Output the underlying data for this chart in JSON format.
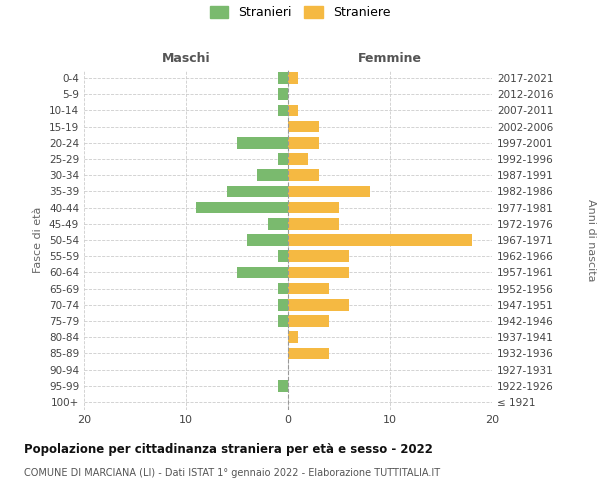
{
  "age_groups": [
    "100+",
    "95-99",
    "90-94",
    "85-89",
    "80-84",
    "75-79",
    "70-74",
    "65-69",
    "60-64",
    "55-59",
    "50-54",
    "45-49",
    "40-44",
    "35-39",
    "30-34",
    "25-29",
    "20-24",
    "15-19",
    "10-14",
    "5-9",
    "0-4"
  ],
  "birth_years": [
    "≤ 1921",
    "1922-1926",
    "1927-1931",
    "1932-1936",
    "1937-1941",
    "1942-1946",
    "1947-1951",
    "1952-1956",
    "1957-1961",
    "1962-1966",
    "1967-1971",
    "1972-1976",
    "1977-1981",
    "1982-1986",
    "1987-1991",
    "1992-1996",
    "1997-2001",
    "2002-2006",
    "2007-2011",
    "2012-2016",
    "2017-2021"
  ],
  "maschi": [
    0,
    1,
    0,
    0,
    0,
    1,
    1,
    1,
    5,
    1,
    4,
    2,
    9,
    6,
    3,
    1,
    5,
    0,
    1,
    1,
    1
  ],
  "femmine": [
    0,
    0,
    0,
    4,
    1,
    4,
    6,
    4,
    6,
    6,
    18,
    5,
    5,
    8,
    3,
    2,
    3,
    3,
    1,
    0,
    1
  ],
  "color_maschi": "#7aba6e",
  "color_femmine": "#f5b942",
  "background_color": "#ffffff",
  "grid_color": "#cccccc",
  "title": "Popolazione per cittadinanza straniera per età e sesso - 2022",
  "subtitle": "COMUNE DI MARCIANA (LI) - Dati ISTAT 1° gennaio 2022 - Elaborazione TUTTITALIA.IT",
  "ylabel_left": "Fasce di età",
  "ylabel_right": "Anni di nascita",
  "xlabel_left": "Maschi",
  "xlabel_right": "Femmine",
  "legend_stranieri": "Stranieri",
  "legend_straniere": "Straniere",
  "xlim": 20
}
